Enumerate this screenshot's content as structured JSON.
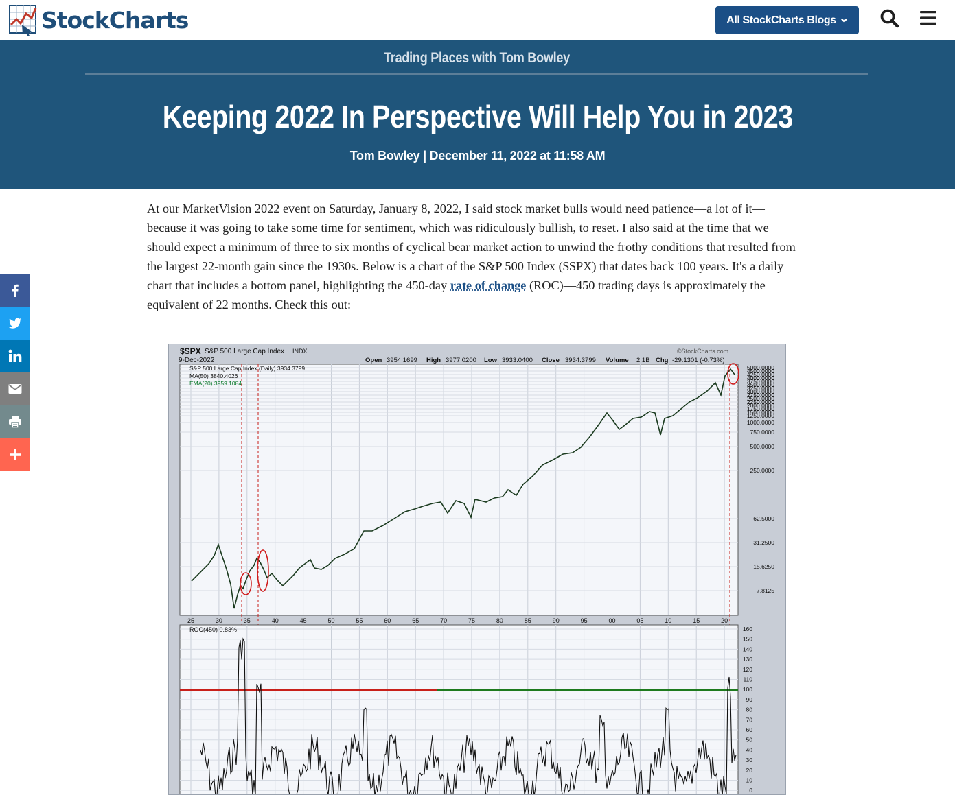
{
  "nav": {
    "logo_text": "StockCharts",
    "blogs_button": "All StockCharts Blogs",
    "icons": [
      "search-icon",
      "menu-icon",
      "chevron-down-icon"
    ]
  },
  "header": {
    "series": "Trading Places with Tom Bowley",
    "title": "Keeping 2022 In Perspective Will Help You in 2023",
    "byline": "Tom Bowley | December 11, 2022 at 11:58 AM"
  },
  "share": {
    "items": [
      {
        "name": "facebook",
        "color": "#3b5998"
      },
      {
        "name": "twitter",
        "color": "#1da1f2"
      },
      {
        "name": "linkedin",
        "color": "#0077b5"
      },
      {
        "name": "email",
        "color": "#7f7f7f"
      },
      {
        "name": "print",
        "color": "#738a8d"
      },
      {
        "name": "more",
        "color": "#ff6550"
      }
    ]
  },
  "article": {
    "p1_before": "At our MarketVision 2022 event on Saturday, January 8, 2022, I said stock market bulls would need patience—a lot of it—because it was going to take some time for sentiment, which was ridiculously bullish, to reset. I also said at the time that we should expect a minimum of three to six months of cyclical bear market action to unwind the frothy conditions that resulted from the largest 22-month gain since the 1930s. Below is a chart of the S&P 500 Index ($SPX) that dates back 100 years. It's a daily chart that includes a bottom panel, highlighting the 450-day",
    "link": "rate of change",
    "p1_after": "(ROC)—450 trading days is approximately the equivalent of 22 months. Check this out:"
  },
  "chart_image": {
    "symbol": "$SPX",
    "name": "S&P 500 Large Cap Index",
    "exchange": "INDX",
    "date": "9-Dec-2022",
    "watermark": "©StockCharts.com",
    "quote": {
      "open_label": "Open",
      "open": "3954.1699",
      "high_label": "High",
      "high": "3977.0200",
      "low_label": "Low",
      "low": "3933.0400",
      "close_label": "Close",
      "close": "3934.3799",
      "volume_label": "Volume",
      "volume": "2.1B",
      "chg_label": "Chg",
      "chg": "-29.1301 (-0.73%)"
    },
    "legend": [
      "S&P 500 Large Cap Index (Daily) 3934.3799",
      "MA(50) 3840.4026",
      "EMA(20) 3959.1084"
    ],
    "roc_legend": "ROC(450) 0.83%",
    "x_labels": [
      "25",
      "30",
      "35",
      "40",
      "45",
      "50",
      "55",
      "60",
      "65",
      "70",
      "75",
      "80",
      "85",
      "90",
      "95",
      "00",
      "05",
      "10",
      "15",
      "20"
    ],
    "price_ticks": [
      "7.8125",
      "15.6250",
      "31.2500",
      "62.5000",
      "250.0000",
      "500.0000",
      "750.0000",
      "1000.0000",
      "1250.0000",
      "1500.0000",
      "1750.0000",
      "2000.0000",
      "2250.0000",
      "2500.0000",
      "2750.0000",
      "3000.0000",
      "3250.0000",
      "3500.0000",
      "3750.0000",
      "4000.0000",
      "4250.0000",
      "4500.0000",
      "5000.0000"
    ],
    "roc_ticks": [
      "160",
      "150",
      "140",
      "130",
      "120",
      "110",
      "100",
      "90",
      "80",
      "70",
      "60",
      "50",
      "40",
      "30",
      "20",
      "10",
      "0"
    ]
  }
}
